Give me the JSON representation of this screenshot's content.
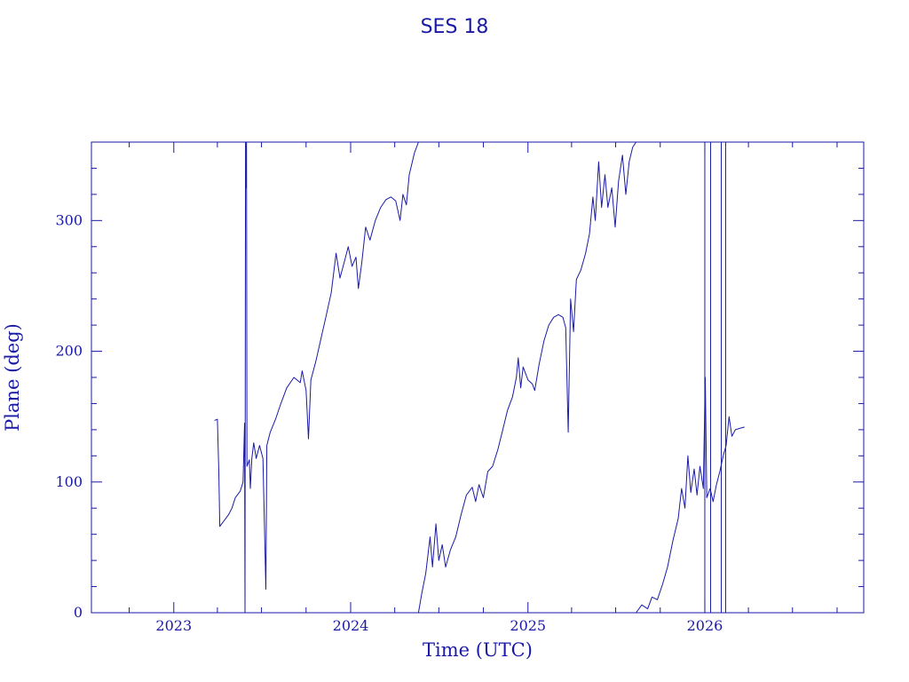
{
  "colors": {
    "ink": "#1a1aa6",
    "background": "#ffffff"
  },
  "chart_data": {
    "type": "line",
    "title": "SES 18",
    "xlabel": "Time (UTC)",
    "ylabel": "Plane (deg)",
    "xlim": [
      "2022-07-15",
      "2026-11-25"
    ],
    "ylim": [
      0,
      360
    ],
    "x_ticks": [
      "2023",
      "2024",
      "2025",
      "2026"
    ],
    "y_ticks": [
      "0",
      "100",
      "200",
      "300"
    ],
    "grid": false,
    "legend": "none",
    "series": [
      {
        "points": [
          [
            "2023-03-26",
            147
          ],
          [
            "2023-04-01",
            148
          ],
          [
            "2023-04-04",
            108
          ],
          [
            "2023-04-06",
            66
          ],
          [
            "2023-04-14",
            70
          ],
          [
            "2023-04-24",
            75
          ],
          [
            "2023-05-01",
            80
          ],
          [
            "2023-05-08",
            88
          ],
          [
            "2023-05-18",
            93
          ],
          [
            "2023-05-24",
            100
          ],
          [
            "2023-05-27",
            145
          ],
          [
            "2023-05-28",
            0
          ],
          [
            "2023-05-29",
            360
          ],
          [
            "2023-05-30",
            325
          ],
          [
            "2023-05-31",
            360
          ],
          [
            "2023-06-01",
            112
          ],
          [
            "2023-06-06",
            117
          ],
          [
            "2023-06-08",
            95
          ],
          [
            "2023-06-11",
            118
          ],
          [
            "2023-06-15",
            130
          ],
          [
            "2023-06-20",
            118
          ],
          [
            "2023-06-27",
            128
          ],
          [
            "2023-07-04",
            118
          ],
          [
            "2023-07-07",
            70
          ],
          [
            "2023-07-10",
            18
          ],
          [
            "2023-07-12",
            128
          ],
          [
            "2023-07-19",
            138
          ],
          [
            "2023-07-30",
            148
          ],
          [
            "2023-08-10",
            160
          ],
          [
            "2023-08-22",
            172
          ],
          [
            "2023-09-06",
            180
          ],
          [
            "2023-09-19",
            176
          ],
          [
            "2023-09-23",
            185
          ],
          [
            "2023-10-01",
            170
          ],
          [
            "2023-10-06",
            133
          ],
          [
            "2023-10-11",
            178
          ],
          [
            "2023-10-21",
            192
          ],
          [
            "2023-11-01",
            210
          ],
          [
            "2023-11-12",
            228
          ],
          [
            "2023-11-22",
            245
          ],
          [
            "2023-12-02",
            275
          ],
          [
            "2023-12-10",
            256
          ],
          [
            "2023-12-20",
            270
          ],
          [
            "2023-12-27",
            280
          ],
          [
            "2024-01-04",
            265
          ],
          [
            "2024-01-12",
            272
          ],
          [
            "2024-01-17",
            248
          ],
          [
            "2024-01-24",
            268
          ],
          [
            "2024-02-01",
            295
          ],
          [
            "2024-02-10",
            285
          ],
          [
            "2024-02-21",
            300
          ],
          [
            "2024-03-03",
            310
          ],
          [
            "2024-03-14",
            316
          ],
          [
            "2024-03-24",
            318
          ],
          [
            "2024-04-03",
            315
          ],
          [
            "2024-04-12",
            300
          ],
          [
            "2024-04-18",
            320
          ],
          [
            "2024-04-25",
            312
          ],
          [
            "2024-05-01",
            335
          ],
          [
            "2024-05-12",
            352
          ],
          [
            "2024-05-20",
            360
          ]
        ]
      },
      {
        "points": [
          [
            "2024-05-20",
            0
          ],
          [
            "2024-05-27",
            15
          ],
          [
            "2024-06-04",
            30
          ],
          [
            "2024-06-13",
            58
          ],
          [
            "2024-06-18",
            35
          ],
          [
            "2024-06-25",
            68
          ],
          [
            "2024-07-01",
            40
          ],
          [
            "2024-07-08",
            52
          ],
          [
            "2024-07-15",
            35
          ],
          [
            "2024-07-25",
            48
          ],
          [
            "2024-08-05",
            58
          ],
          [
            "2024-08-16",
            75
          ],
          [
            "2024-08-27",
            90
          ],
          [
            "2024-09-08",
            96
          ],
          [
            "2024-09-15",
            85
          ],
          [
            "2024-09-22",
            98
          ],
          [
            "2024-10-01",
            88
          ],
          [
            "2024-10-10",
            108
          ],
          [
            "2024-10-20",
            112
          ],
          [
            "2024-10-31",
            125
          ],
          [
            "2024-11-10",
            140
          ],
          [
            "2024-11-20",
            155
          ],
          [
            "2024-11-30",
            165
          ],
          [
            "2024-12-08",
            180
          ],
          [
            "2024-12-12",
            195
          ],
          [
            "2024-12-17",
            172
          ],
          [
            "2024-12-22",
            188
          ],
          [
            "2025-01-01",
            178
          ],
          [
            "2025-01-10",
            175
          ],
          [
            "2025-01-15",
            170
          ],
          [
            "2025-01-24",
            190
          ],
          [
            "2025-02-03",
            208
          ],
          [
            "2025-02-13",
            220
          ],
          [
            "2025-02-23",
            226
          ],
          [
            "2025-03-05",
            228
          ],
          [
            "2025-03-14",
            226
          ],
          [
            "2025-03-20",
            218
          ],
          [
            "2025-03-25",
            138
          ],
          [
            "2025-03-30",
            240
          ],
          [
            "2025-04-05",
            215
          ],
          [
            "2025-04-11",
            255
          ],
          [
            "2025-04-20",
            262
          ],
          [
            "2025-04-30",
            275
          ],
          [
            "2025-05-08",
            290
          ],
          [
            "2025-05-15",
            318
          ],
          [
            "2025-05-20",
            300
          ],
          [
            "2025-05-27",
            345
          ],
          [
            "2025-06-02",
            310
          ],
          [
            "2025-06-09",
            335
          ],
          [
            "2025-06-15",
            310
          ],
          [
            "2025-06-23",
            325
          ],
          [
            "2025-06-30",
            295
          ],
          [
            "2025-07-07",
            330
          ],
          [
            "2025-07-15",
            350
          ],
          [
            "2025-07-22",
            320
          ],
          [
            "2025-07-29",
            345
          ],
          [
            "2025-08-05",
            356
          ],
          [
            "2025-08-12",
            360
          ]
        ]
      },
      {
        "points": [
          [
            "2025-08-12",
            0
          ],
          [
            "2025-08-24",
            6
          ],
          [
            "2025-09-05",
            3
          ],
          [
            "2025-09-14",
            12
          ],
          [
            "2025-09-25",
            10
          ],
          [
            "2025-10-06",
            22
          ],
          [
            "2025-10-16",
            35
          ],
          [
            "2025-10-27",
            55
          ],
          [
            "2025-11-07",
            72
          ],
          [
            "2025-11-14",
            95
          ],
          [
            "2025-11-21",
            80
          ],
          [
            "2025-11-27",
            120
          ],
          [
            "2025-12-03",
            92
          ],
          [
            "2025-12-10",
            110
          ],
          [
            "2025-12-16",
            90
          ],
          [
            "2025-12-22",
            112
          ],
          [
            "2025-12-29",
            95
          ],
          [
            "2026-01-02",
            180
          ],
          [
            "2026-01-05",
            88
          ],
          [
            "2026-01-12",
            95
          ],
          [
            "2026-01-18",
            85
          ],
          [
            "2026-01-25",
            98
          ],
          [
            "2026-02-01",
            108
          ],
          [
            "2026-02-08",
            120
          ],
          [
            "2026-02-14",
            128
          ],
          [
            "2026-02-20",
            150
          ],
          [
            "2026-02-26",
            135
          ],
          [
            "2026-03-05",
            140
          ],
          [
            "2026-03-14",
            141
          ],
          [
            "2026-03-24",
            142
          ]
        ]
      }
    ],
    "vertical_lines": [
      "2026-01-01",
      "2026-01-13",
      "2026-02-04",
      "2026-02-13"
    ]
  }
}
